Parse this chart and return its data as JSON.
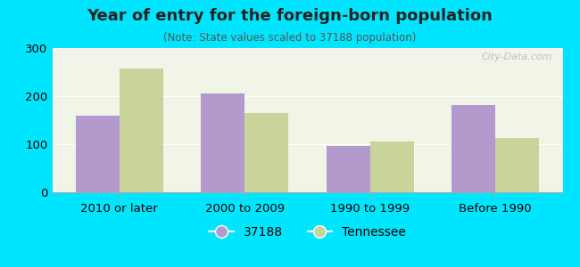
{
  "title": "Year of entry for the foreign-born population",
  "subtitle": "(Note: State values scaled to 37188 population)",
  "categories": [
    "2010 or later",
    "2000 to 2009",
    "1990 to 1999",
    "Before 1990"
  ],
  "series_37188": [
    160,
    205,
    96,
    181
  ],
  "series_tennessee": [
    257,
    165,
    106,
    113
  ],
  "color_37188": "#b399cc",
  "color_tennessee": "#c8d49a",
  "ylim": [
    0,
    300
  ],
  "yticks": [
    0,
    100,
    200,
    300
  ],
  "background_outer": "#00e5ff",
  "background_chart": "#f0f5e8",
  "bar_width": 0.35,
  "legend_label_37188": "37188",
  "legend_label_tennessee": "Tennessee",
  "watermark": "City-Data.com"
}
